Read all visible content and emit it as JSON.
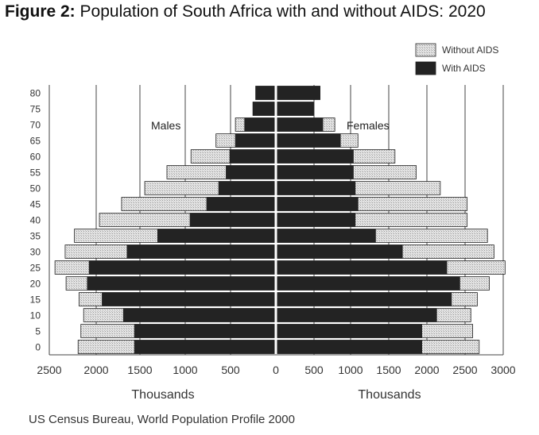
{
  "title": {
    "prefix": "Figure 2:",
    "text": "Population of South Africa with and without AIDS: 2020"
  },
  "source": "US Census Bureau, World Population Profile 2000",
  "chart_data": {
    "type": "bar",
    "orientation": "horizontal",
    "subtype": "population-pyramid",
    "categories": [
      "0",
      "5",
      "10",
      "15",
      "20",
      "25",
      "30",
      "35",
      "40",
      "45",
      "50",
      "55",
      "60",
      "65",
      "70",
      "75",
      "80"
    ],
    "series": [
      {
        "name": "Without AIDS",
        "color": "#dcdcdc",
        "males": [
          2120,
          2090,
          2060,
          2110,
          2250,
          2370,
          2260,
          2160,
          1890,
          1650,
          1400,
          1160,
          900,
          630,
          420,
          230,
          200
        ],
        "females": [
          2180,
          2110,
          2090,
          2160,
          2290,
          2460,
          2340,
          2270,
          2050,
          2050,
          1760,
          1500,
          1270,
          870,
          620,
          390,
          460
        ]
      },
      {
        "name": "With AIDS",
        "color": "#232323",
        "males": [
          1510,
          1510,
          1630,
          1860,
          2020,
          2000,
          1590,
          1260,
          910,
          730,
          600,
          520,
          480,
          420,
          320,
          230,
          200
        ],
        "females": [
          1560,
          1560,
          1720,
          1880,
          1970,
          1830,
          1350,
          1060,
          840,
          870,
          840,
          820,
          820,
          680,
          490,
          390,
          460
        ]
      }
    ],
    "section_labels": {
      "left": "Males",
      "right": "Females"
    },
    "xticks": [
      "2500",
      "2000",
      "1500",
      "1000",
      "500",
      "0",
      "500",
      "1000",
      "1500",
      "2000",
      "2500",
      "3000"
    ],
    "xlabel_left": "Thousands",
    "xlabel_right": "Thousands",
    "legend": [
      "Without AIDS",
      "With AIDS"
    ],
    "legend_position": "top-right",
    "xlim_left": [
      0,
      2500
    ],
    "xlim_right": [
      0,
      3000
    ]
  }
}
